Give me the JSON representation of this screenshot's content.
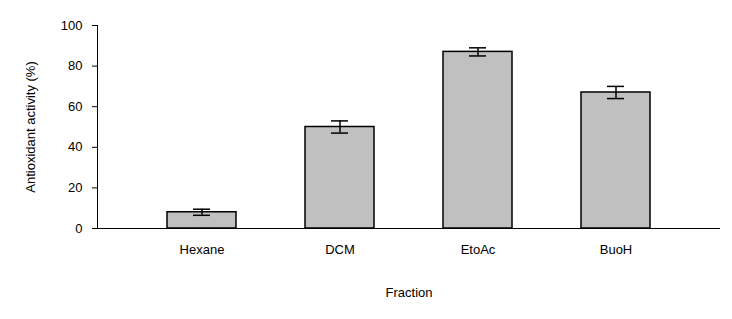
{
  "chart_data": {
    "type": "bar",
    "categories": [
      "Hexane",
      "DCM",
      "EtoAc",
      "BuoH"
    ],
    "values": [
      8,
      50,
      87,
      67
    ],
    "errors": [
      1.5,
      3,
      2,
      3
    ],
    "color": "#c0c0c0",
    "x_label": "Fraction",
    "y_label": "Antioxidant activity (%)",
    "ylim": [
      0,
      100
    ],
    "yticks": [
      0,
      20,
      40,
      60,
      80,
      100
    ],
    "grid": false
  }
}
